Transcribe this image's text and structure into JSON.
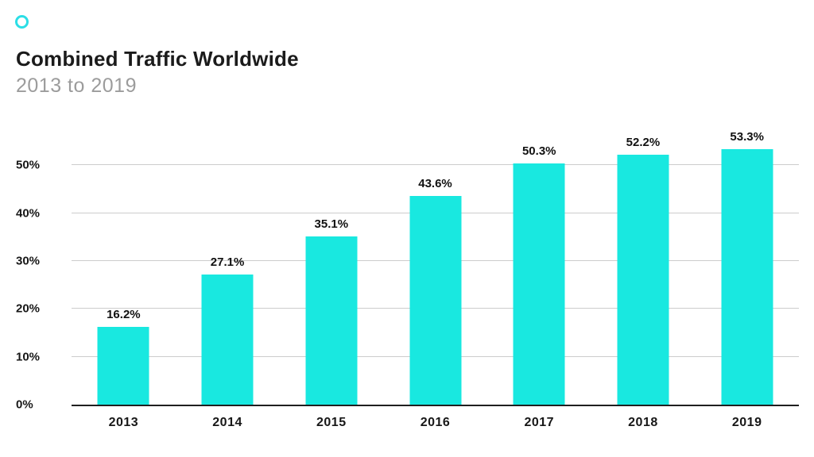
{
  "header": {
    "title": "Combined Traffic Worldwide",
    "subtitle": "2013 to 2019",
    "logo_icon": "circle-outline-icon"
  },
  "colors": {
    "bar": "#19E8E0",
    "logo_ring": "#2BDEE6",
    "title_text": "#1B1B1B",
    "subtitle_text": "#9C9C9C",
    "gridline": "#CCCCCC",
    "baseline": "#1F1F1F",
    "label_text": "#111111",
    "background": "#FFFFFF"
  },
  "chart_data": {
    "type": "bar",
    "title": "Combined Traffic Worldwide",
    "subtitle": "2013 to 2019",
    "categories": [
      "2013",
      "2014",
      "2015",
      "2016",
      "2017",
      "2018",
      "2019"
    ],
    "values": [
      16.2,
      27.1,
      35.1,
      43.6,
      50.3,
      52.2,
      53.3
    ],
    "value_labels": [
      "16.2%",
      "27.1%",
      "35.1%",
      "43.6%",
      "50.3%",
      "52.2%",
      "53.3%"
    ],
    "xlabel": "",
    "ylabel": "",
    "y_ticks": [
      {
        "value": 50,
        "label": "50%"
      },
      {
        "value": 40,
        "label": "40%"
      },
      {
        "value": 30,
        "label": "30%"
      },
      {
        "value": 20,
        "label": "20%"
      },
      {
        "value": 10,
        "label": "10%"
      },
      {
        "value": 0,
        "label": "0%"
      }
    ],
    "ylim": [
      0,
      57
    ],
    "grid": true,
    "legend_position": "none",
    "bar_color": "#19E8E0"
  }
}
